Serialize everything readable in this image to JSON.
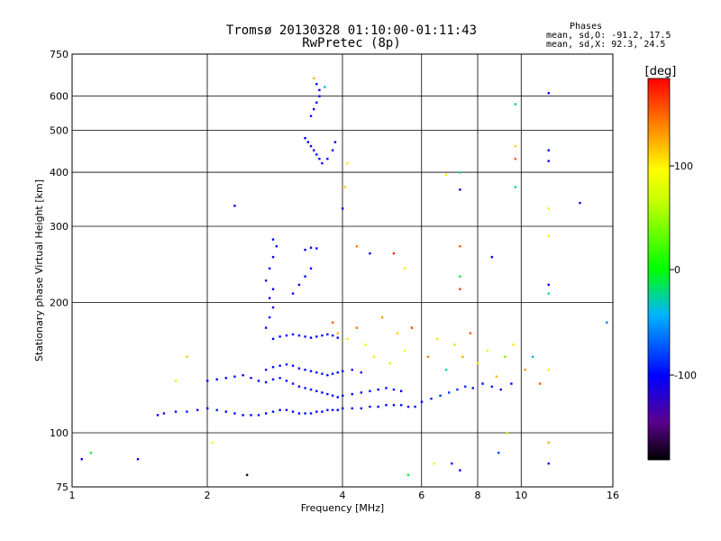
{
  "header": {
    "title_line1": "Tromsø 20130328 01:10:00-01:11:43",
    "title_line2": "RwPretec (8p)"
  },
  "stats": {
    "heading": "Phases",
    "line_o": "mean, sd,O: -91.2, 17.5",
    "line_x": "mean, sd,X:  92.3, 24.5"
  },
  "colorbar": {
    "label": "[deg]",
    "ticks": [
      "100",
      "0",
      "-100"
    ]
  },
  "chart_data": {
    "type": "scatter",
    "xlabel": "Frequency [MHz]",
    "ylabel": "Stationary phase Virtual Height [km]",
    "x_scale": "log",
    "y_scale": "log",
    "xlim": [
      1,
      16
    ],
    "ylim": [
      75,
      750
    ],
    "x_ticks": [
      "1",
      "2",
      "4",
      "6",
      "8",
      "10",
      "16"
    ],
    "x_tick_values": [
      1,
      2,
      4,
      6,
      8,
      10,
      16
    ],
    "y_ticks": [
      "750",
      "600",
      "500",
      "400",
      "300",
      "200",
      "100",
      "75"
    ],
    "y_tick_values": [
      750,
      600,
      500,
      400,
      300,
      200,
      100,
      75
    ],
    "grid": true,
    "color_scale": {
      "min": -180,
      "max": 180,
      "unit": "deg"
    },
    "series": [
      {
        "points": [
          [
            1.55,
            110,
            -100
          ],
          [
            1.6,
            111,
            -98
          ],
          [
            1.7,
            112,
            -102
          ],
          [
            1.8,
            112,
            -95
          ],
          [
            1.9,
            113,
            -100
          ],
          [
            2.0,
            114,
            -105
          ],
          [
            2.1,
            113,
            -92
          ],
          [
            2.2,
            112,
            -100
          ],
          [
            2.3,
            111,
            -97
          ],
          [
            2.4,
            110,
            -103
          ],
          [
            2.5,
            110,
            -99
          ],
          [
            2.6,
            110,
            -94
          ],
          [
            2.7,
            111,
            -100
          ],
          [
            2.8,
            112,
            -96
          ],
          [
            2.9,
            113,
            -101
          ],
          [
            3.0,
            113,
            -99
          ],
          [
            3.1,
            112,
            -104
          ],
          [
            3.2,
            111,
            -98
          ],
          [
            3.3,
            111,
            -100
          ],
          [
            3.4,
            111,
            -95
          ],
          [
            3.5,
            112,
            -102
          ],
          [
            3.6,
            112,
            -100
          ],
          [
            3.7,
            113,
            -97
          ],
          [
            3.8,
            113,
            -101
          ],
          [
            3.9,
            113,
            -99
          ],
          [
            4.0,
            114,
            -100
          ],
          [
            4.2,
            114,
            -98
          ],
          [
            4.4,
            114,
            -102
          ],
          [
            4.6,
            115,
            -96
          ],
          [
            4.8,
            115,
            -100
          ],
          [
            5.0,
            116,
            -103
          ],
          [
            5.2,
            116,
            -97
          ],
          [
            5.4,
            116,
            -99
          ],
          [
            5.6,
            115,
            -100
          ],
          [
            5.8,
            115,
            -94
          ],
          [
            6.0,
            118,
            -100
          ],
          [
            6.3,
            120,
            -90
          ],
          [
            6.6,
            122,
            -85
          ],
          [
            6.9,
            124,
            -80
          ],
          [
            7.2,
            126,
            -85
          ],
          [
            7.5,
            128,
            -88
          ],
          [
            7.8,
            127,
            -95
          ],
          [
            8.2,
            130,
            -100
          ],
          [
            8.6,
            128,
            -92
          ],
          [
            9.0,
            126,
            -98
          ],
          [
            9.5,
            130,
            -100
          ],
          [
            2.0,
            132,
            -100
          ],
          [
            2.1,
            133,
            -98
          ],
          [
            2.2,
            134,
            -102
          ],
          [
            2.3,
            135,
            -95
          ],
          [
            2.4,
            136,
            -100
          ],
          [
            2.5,
            134,
            -97
          ],
          [
            2.6,
            132,
            -104
          ],
          [
            2.7,
            131,
            -99
          ],
          [
            2.8,
            133,
            -100
          ],
          [
            2.9,
            134,
            -96
          ],
          [
            3.0,
            132,
            -101
          ],
          [
            3.1,
            130,
            -98
          ],
          [
            3.2,
            128,
            -100
          ],
          [
            3.3,
            127,
            -95
          ],
          [
            3.4,
            126,
            -102
          ],
          [
            3.5,
            125,
            -99
          ],
          [
            3.6,
            124,
            -100
          ],
          [
            3.7,
            123,
            -97
          ],
          [
            3.8,
            122,
            -101
          ],
          [
            3.9,
            121,
            -99
          ],
          [
            4.0,
            122,
            -103
          ],
          [
            4.2,
            123,
            -98
          ],
          [
            4.4,
            124,
            -100
          ],
          [
            4.6,
            125,
            -96
          ],
          [
            4.8,
            126,
            -102
          ],
          [
            5.0,
            127,
            -99
          ],
          [
            5.2,
            126,
            -97
          ],
          [
            5.4,
            125,
            -100
          ],
          [
            2.7,
            140,
            -100
          ],
          [
            2.8,
            142,
            -98
          ],
          [
            2.9,
            143,
            -102
          ],
          [
            3.0,
            144,
            -95
          ],
          [
            3.1,
            143,
            -100
          ],
          [
            3.2,
            141,
            -97
          ],
          [
            3.3,
            140,
            -104
          ],
          [
            3.4,
            139,
            -99
          ],
          [
            3.5,
            138,
            -100
          ],
          [
            3.6,
            137,
            -96
          ],
          [
            3.7,
            136,
            -101
          ],
          [
            3.8,
            137,
            -98
          ],
          [
            3.9,
            138,
            -100
          ],
          [
            4.0,
            139,
            -95
          ],
          [
            4.2,
            140,
            -102
          ],
          [
            4.4,
            138,
            -99
          ],
          [
            2.8,
            165,
            -100
          ],
          [
            2.9,
            167,
            -98
          ],
          [
            3.0,
            168,
            -102
          ],
          [
            3.1,
            169,
            -95
          ],
          [
            3.2,
            168,
            -100
          ],
          [
            3.3,
            167,
            -97
          ],
          [
            3.4,
            166,
            -104
          ],
          [
            3.5,
            167,
            -99
          ],
          [
            3.6,
            168,
            -100
          ],
          [
            3.7,
            169,
            -96
          ],
          [
            3.8,
            168,
            -101
          ],
          [
            3.9,
            166,
            -98
          ],
          [
            2.7,
            175,
            -100
          ],
          [
            2.75,
            185,
            -98
          ],
          [
            2.8,
            195,
            -105
          ],
          [
            2.75,
            205,
            -100
          ],
          [
            2.8,
            215,
            -102
          ],
          [
            2.7,
            225,
            -95
          ],
          [
            2.75,
            240,
            -100
          ],
          [
            2.8,
            255,
            -103
          ],
          [
            2.85,
            270,
            -100
          ],
          [
            2.8,
            280,
            -98
          ],
          [
            3.1,
            210,
            -100
          ],
          [
            3.2,
            220,
            -102
          ],
          [
            3.3,
            230,
            -97
          ],
          [
            3.4,
            240,
            -100
          ],
          [
            3.3,
            265,
            -104
          ],
          [
            3.4,
            268,
            -99
          ],
          [
            3.5,
            267,
            -100
          ],
          [
            3.3,
            480,
            -100
          ],
          [
            3.35,
            470,
            -98
          ],
          [
            3.4,
            460,
            -105
          ],
          [
            3.45,
            450,
            -102
          ],
          [
            3.5,
            440,
            -100
          ],
          [
            3.55,
            430,
            -97
          ],
          [
            3.6,
            420,
            -103
          ],
          [
            3.7,
            430,
            -100
          ],
          [
            3.8,
            450,
            -98
          ],
          [
            3.85,
            470,
            -100
          ],
          [
            3.4,
            540,
            -100
          ],
          [
            3.45,
            560,
            -102
          ],
          [
            3.5,
            580,
            -98
          ],
          [
            3.55,
            600,
            -100
          ],
          [
            3.5,
            640,
            -95
          ],
          [
            3.55,
            620,
            -102
          ],
          [
            3.65,
            630,
            -40
          ],
          [
            3.45,
            660,
            120
          ],
          [
            3.8,
            180,
            150
          ],
          [
            3.9,
            170,
            120
          ],
          [
            4.1,
            165,
            100
          ],
          [
            4.3,
            175,
            140
          ],
          [
            4.5,
            160,
            80
          ],
          [
            4.7,
            150,
            100
          ],
          [
            4.9,
            185,
            130
          ],
          [
            5.1,
            145,
            60
          ],
          [
            5.3,
            170,
            110
          ],
          [
            5.5,
            155,
            90
          ],
          [
            5.7,
            175,
            160
          ],
          [
            6.2,
            150,
            140
          ],
          [
            6.5,
            165,
            100
          ],
          [
            6.8,
            140,
            -30
          ],
          [
            7.1,
            160,
            60
          ],
          [
            7.4,
            150,
            120
          ],
          [
            7.7,
            170,
            150
          ],
          [
            8.0,
            145,
            100
          ],
          [
            8.4,
            155,
            80
          ],
          [
            8.8,
            135,
            120
          ],
          [
            9.2,
            150,
            40
          ],
          [
            9.6,
            160,
            100
          ],
          [
            10.2,
            140,
            130
          ],
          [
            10.6,
            150,
            -40
          ],
          [
            11.0,
            130,
            150
          ],
          [
            11.5,
            140,
            100
          ],
          [
            1.7,
            132,
            100
          ],
          [
            1.8,
            150,
            110
          ],
          [
            2.05,
            95,
            90
          ],
          [
            4.1,
            420,
            100
          ],
          [
            4.05,
            370,
            110
          ],
          [
            4.0,
            330,
            -100
          ],
          [
            4.3,
            270,
            140
          ],
          [
            4.6,
            260,
            -100
          ],
          [
            5.2,
            260,
            170
          ],
          [
            5.5,
            240,
            100
          ],
          [
            6.8,
            395,
            100
          ],
          [
            7.3,
            400,
            -20
          ],
          [
            7.3,
            365,
            -100
          ],
          [
            7.3,
            270,
            150
          ],
          [
            7.3,
            230,
            -10
          ],
          [
            7.3,
            215,
            160
          ],
          [
            8.6,
            255,
            -100
          ],
          [
            9.7,
            575,
            -20
          ],
          [
            9.7,
            460,
            110
          ],
          [
            9.7,
            430,
            150
          ],
          [
            9.7,
            370,
            -20
          ],
          [
            11.5,
            610,
            -100
          ],
          [
            11.5,
            450,
            -100
          ],
          [
            11.5,
            425,
            -110
          ],
          [
            11.5,
            330,
            100
          ],
          [
            11.5,
            285,
            100
          ],
          [
            11.5,
            220,
            -100
          ],
          [
            11.5,
            210,
            -20
          ],
          [
            13.5,
            340,
            -120
          ],
          [
            15.5,
            180,
            -60
          ],
          [
            11.5,
            95,
            120
          ],
          [
            11.5,
            85,
            -100
          ],
          [
            1.1,
            90,
            -10
          ],
          [
            1.05,
            87,
            -100
          ],
          [
            1.4,
            87,
            -100
          ],
          [
            2.3,
            335,
            -100
          ],
          [
            2.45,
            80,
            -170
          ],
          [
            5.6,
            80,
            -10
          ],
          [
            6.4,
            85,
            100
          ],
          [
            7.0,
            85,
            -100
          ],
          [
            7.3,
            82,
            -100
          ],
          [
            8.9,
            90,
            -80
          ],
          [
            9.3,
            100,
            60
          ]
        ]
      }
    ]
  }
}
